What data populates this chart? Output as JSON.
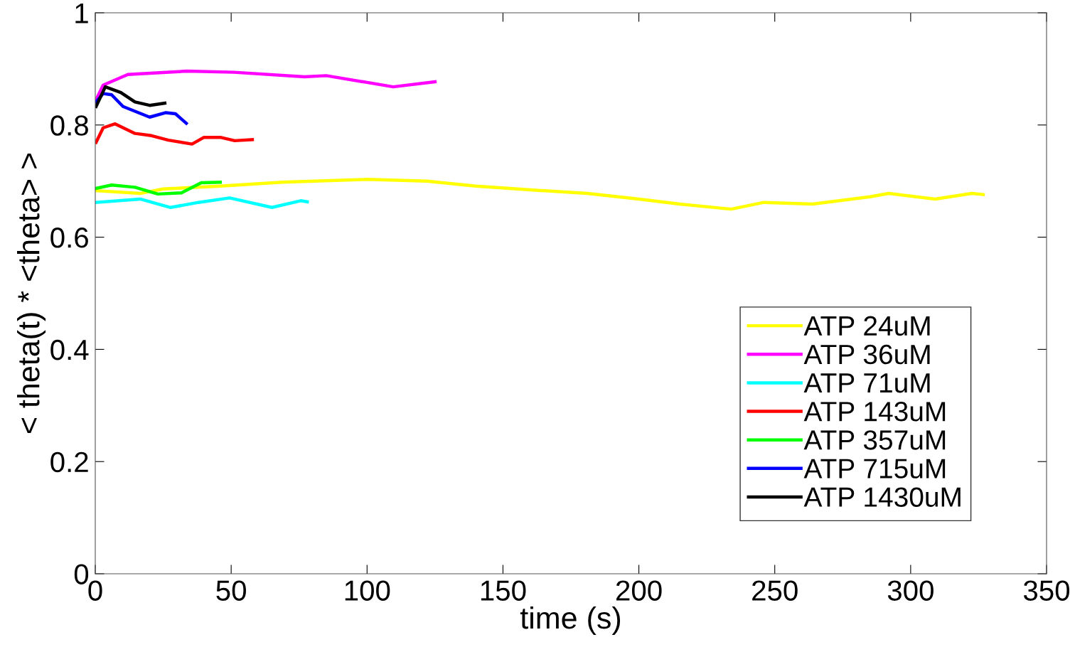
{
  "chart_data": {
    "type": "line",
    "xlabel": "time (s)",
    "ylabel": "< theta(t) * <theta> >",
    "xlim": [
      0,
      350
    ],
    "ylim": [
      0,
      1
    ],
    "xticks": [
      0,
      50,
      100,
      150,
      200,
      250,
      300,
      350
    ],
    "yticks": [
      0,
      0.2,
      0.4,
      0.6,
      0.8,
      1
    ],
    "grid": false,
    "legend": "bottom right",
    "marker": "none",
    "line_style": "solid",
    "series": [
      {
        "name": "ATP 24uM",
        "color": "#ffff00",
        "x": [
          0.3,
          16.5,
          25,
          46,
          68.8,
          100,
          122,
          140,
          161,
          181,
          200,
          215,
          234,
          246,
          264,
          285,
          292,
          309,
          322.5,
          326.7
        ],
        "values": [
          0.683,
          0.678,
          0.686,
          0.691,
          0.698,
          0.703,
          0.7,
          0.691,
          0.684,
          0.678,
          0.668,
          0.659,
          0.65,
          0.662,
          0.659,
          0.672,
          0.678,
          0.668,
          0.678,
          0.676
        ]
      },
      {
        "name": "ATP 36uM",
        "color": "#ff00ff",
        "x": [
          0.3,
          2.9,
          12,
          33.7,
          51,
          77,
          85,
          109.6,
          125
        ],
        "values": [
          0.845,
          0.871,
          0.89,
          0.896,
          0.894,
          0.886,
          0.888,
          0.868,
          0.877
        ]
      },
      {
        "name": "ATP 71uM",
        "color": "#00ffff",
        "x": [
          0.3,
          16.5,
          27.7,
          38,
          49.4,
          65,
          75.6,
          78
        ],
        "values": [
          0.662,
          0.668,
          0.653,
          0.662,
          0.67,
          0.653,
          0.665,
          0.663
        ]
      },
      {
        "name": "ATP 143uM",
        "color": "#ff0000",
        "x": [
          0.3,
          2.9,
          7.3,
          14.6,
          20.7,
          26.9,
          35.6,
          40,
          46,
          51.3,
          57.8
        ],
        "values": [
          0.769,
          0.795,
          0.802,
          0.785,
          0.781,
          0.773,
          0.766,
          0.778,
          0.778,
          0.772,
          0.774
        ]
      },
      {
        "name": "ATP 357uM",
        "color": "#00ff00",
        "x": [
          0.3,
          6,
          14.6,
          23,
          31.7,
          39,
          46
        ],
        "values": [
          0.687,
          0.693,
          0.689,
          0.677,
          0.679,
          0.697,
          0.698
        ]
      },
      {
        "name": "ATP 715uM",
        "color": "#0000ff",
        "x": [
          0.3,
          2.9,
          6,
          10.2,
          20,
          26,
          29.5,
          33.5
        ],
        "values": [
          0.841,
          0.856,
          0.854,
          0.833,
          0.814,
          0.822,
          0.82,
          0.803
        ]
      },
      {
        "name": "ATP 1430uM",
        "color": "#000000",
        "x": [
          0.3,
          3.7,
          9.4,
          14.6,
          20,
          25.6
        ],
        "values": [
          0.833,
          0.868,
          0.858,
          0.841,
          0.835,
          0.839
        ]
      }
    ]
  }
}
